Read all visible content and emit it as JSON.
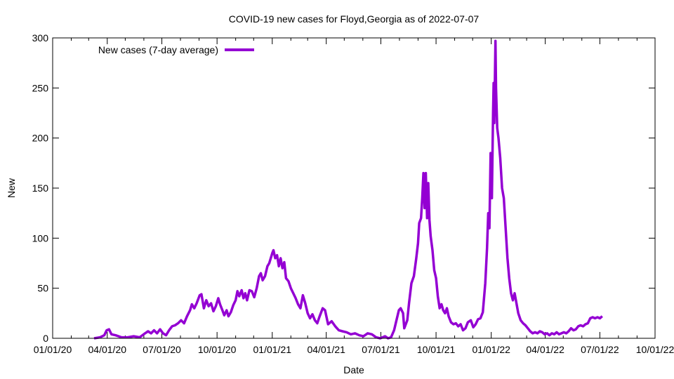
{
  "chart_data": {
    "type": "line",
    "title": "COVID-19 new cases for Floyd,Georgia as of 2022-07-07",
    "xlabel": "Date",
    "ylabel": "New",
    "x_ticks": [
      "01/01/20",
      "04/01/20",
      "07/01/20",
      "10/01/20",
      "01/01/21",
      "04/01/21",
      "07/01/21",
      "10/01/21",
      "01/01/22",
      "04/01/22",
      "07/01/22",
      "10/01/22"
    ],
    "x_tick_dates": [
      "2020-01-01",
      "2020-04-01",
      "2020-07-01",
      "2020-10-01",
      "2021-01-01",
      "2021-04-01",
      "2021-07-01",
      "2021-10-01",
      "2022-01-01",
      "2022-04-01",
      "2022-07-01",
      "2022-10-01"
    ],
    "xlim": [
      "2020-01-01",
      "2022-10-01"
    ],
    "ylim": [
      0,
      300
    ],
    "y_ticks": [
      0,
      50,
      100,
      150,
      200,
      250,
      300
    ],
    "grid": false,
    "legend_position": "top-left",
    "series": [
      {
        "name": "New cases (7-day average)",
        "color": "#9400D3",
        "points": [
          [
            "2020-03-10",
            0
          ],
          [
            "2020-03-20",
            1
          ],
          [
            "2020-03-27",
            3
          ],
          [
            "2020-03-31",
            8
          ],
          [
            "2020-04-04",
            9
          ],
          [
            "2020-04-08",
            4
          ],
          [
            "2020-04-15",
            3
          ],
          [
            "2020-04-25",
            1
          ],
          [
            "2020-05-05",
            1
          ],
          [
            "2020-05-15",
            2
          ],
          [
            "2020-05-25",
            1
          ],
          [
            "2020-06-03",
            5
          ],
          [
            "2020-06-08",
            7
          ],
          [
            "2020-06-13",
            5
          ],
          [
            "2020-06-18",
            8
          ],
          [
            "2020-06-23",
            5
          ],
          [
            "2020-06-28",
            9
          ],
          [
            "2020-07-03",
            5
          ],
          [
            "2020-07-08",
            3
          ],
          [
            "2020-07-13",
            8
          ],
          [
            "2020-07-18",
            12
          ],
          [
            "2020-07-23",
            13
          ],
          [
            "2020-07-28",
            15
          ],
          [
            "2020-08-02",
            18
          ],
          [
            "2020-08-07",
            15
          ],
          [
            "2020-08-12",
            22
          ],
          [
            "2020-08-17",
            28
          ],
          [
            "2020-08-20",
            34
          ],
          [
            "2020-08-24",
            30
          ],
          [
            "2020-08-28",
            35
          ],
          [
            "2020-09-02",
            43
          ],
          [
            "2020-09-05",
            44
          ],
          [
            "2020-09-09",
            30
          ],
          [
            "2020-09-13",
            38
          ],
          [
            "2020-09-17",
            32
          ],
          [
            "2020-09-21",
            35
          ],
          [
            "2020-09-25",
            27
          ],
          [
            "2020-09-29",
            32
          ],
          [
            "2020-10-03",
            40
          ],
          [
            "2020-10-06",
            34
          ],
          [
            "2020-10-10",
            28
          ],
          [
            "2020-10-13",
            23
          ],
          [
            "2020-10-17",
            28
          ],
          [
            "2020-10-20",
            22
          ],
          [
            "2020-10-24",
            26
          ],
          [
            "2020-10-28",
            33
          ],
          [
            "2020-11-01",
            38
          ],
          [
            "2020-11-04",
            47
          ],
          [
            "2020-11-07",
            42
          ],
          [
            "2020-11-11",
            48
          ],
          [
            "2020-11-14",
            40
          ],
          [
            "2020-11-17",
            45
          ],
          [
            "2020-11-20",
            38
          ],
          [
            "2020-11-24",
            48
          ],
          [
            "2020-11-28",
            47
          ],
          [
            "2020-12-02",
            41
          ],
          [
            "2020-12-06",
            50
          ],
          [
            "2020-12-10",
            62
          ],
          [
            "2020-12-13",
            65
          ],
          [
            "2020-12-16",
            58
          ],
          [
            "2020-12-20",
            62
          ],
          [
            "2020-12-24",
            72
          ],
          [
            "2020-12-27",
            75
          ],
          [
            "2021-01-01",
            85
          ],
          [
            "2021-01-03",
            88
          ],
          [
            "2021-01-06",
            80
          ],
          [
            "2021-01-09",
            83
          ],
          [
            "2021-01-12",
            72
          ],
          [
            "2021-01-15",
            80
          ],
          [
            "2021-01-18",
            70
          ],
          [
            "2021-01-21",
            76
          ],
          [
            "2021-01-24",
            60
          ],
          [
            "2021-01-28",
            57
          ],
          [
            "2021-02-01",
            50
          ],
          [
            "2021-02-05",
            45
          ],
          [
            "2021-02-09",
            40
          ],
          [
            "2021-02-13",
            34
          ],
          [
            "2021-02-17",
            30
          ],
          [
            "2021-02-21",
            43
          ],
          [
            "2021-02-25",
            35
          ],
          [
            "2021-03-01",
            25
          ],
          [
            "2021-03-05",
            20
          ],
          [
            "2021-03-09",
            24
          ],
          [
            "2021-03-13",
            18
          ],
          [
            "2021-03-17",
            15
          ],
          [
            "2021-03-21",
            22
          ],
          [
            "2021-03-26",
            30
          ],
          [
            "2021-03-30",
            28
          ],
          [
            "2021-04-04",
            14
          ],
          [
            "2021-04-10",
            17
          ],
          [
            "2021-04-16",
            12
          ],
          [
            "2021-04-22",
            8
          ],
          [
            "2021-04-28",
            7
          ],
          [
            "2021-05-05",
            6
          ],
          [
            "2021-05-12",
            4
          ],
          [
            "2021-05-19",
            5
          ],
          [
            "2021-05-26",
            3
          ],
          [
            "2021-06-02",
            2
          ],
          [
            "2021-06-09",
            5
          ],
          [
            "2021-06-16",
            4
          ],
          [
            "2021-06-23",
            1
          ],
          [
            "2021-06-30",
            0
          ],
          [
            "2021-07-08",
            2
          ],
          [
            "2021-07-13",
            0
          ],
          [
            "2021-07-18",
            1
          ],
          [
            "2021-07-23",
            8
          ],
          [
            "2021-07-27",
            18
          ],
          [
            "2021-07-31",
            28
          ],
          [
            "2021-08-03",
            30
          ],
          [
            "2021-08-07",
            25
          ],
          [
            "2021-08-09",
            10
          ],
          [
            "2021-08-14",
            18
          ],
          [
            "2021-08-17",
            35
          ],
          [
            "2021-08-21",
            55
          ],
          [
            "2021-08-25",
            62
          ],
          [
            "2021-08-29",
            80
          ],
          [
            "2021-09-01",
            95
          ],
          [
            "2021-09-03",
            115
          ],
          [
            "2021-09-06",
            120
          ],
          [
            "2021-09-08",
            140
          ],
          [
            "2021-09-10",
            165
          ],
          [
            "2021-09-12",
            130
          ],
          [
            "2021-09-14",
            165
          ],
          [
            "2021-09-16",
            120
          ],
          [
            "2021-09-18",
            155
          ],
          [
            "2021-09-20",
            118
          ],
          [
            "2021-09-22",
            102
          ],
          [
            "2021-09-25",
            88
          ],
          [
            "2021-09-28",
            68
          ],
          [
            "2021-10-01",
            60
          ],
          [
            "2021-10-04",
            42
          ],
          [
            "2021-10-07",
            30
          ],
          [
            "2021-10-10",
            34
          ],
          [
            "2021-10-13",
            28
          ],
          [
            "2021-10-16",
            25
          ],
          [
            "2021-10-19",
            30
          ],
          [
            "2021-10-22",
            22
          ],
          [
            "2021-10-26",
            16
          ],
          [
            "2021-10-30",
            14
          ],
          [
            "2021-11-03",
            15
          ],
          [
            "2021-11-07",
            12
          ],
          [
            "2021-11-11",
            14
          ],
          [
            "2021-11-15",
            8
          ],
          [
            "2021-11-19",
            10
          ],
          [
            "2021-11-23",
            16
          ],
          [
            "2021-11-28",
            18
          ],
          [
            "2021-12-02",
            11
          ],
          [
            "2021-12-06",
            14
          ],
          [
            "2021-12-10",
            19
          ],
          [
            "2021-12-14",
            20
          ],
          [
            "2021-12-18",
            26
          ],
          [
            "2021-12-22",
            55
          ],
          [
            "2021-12-25",
            90
          ],
          [
            "2021-12-27",
            125
          ],
          [
            "2021-12-29",
            110
          ],
          [
            "2021-12-31",
            185
          ],
          [
            "2022-01-02",
            140
          ],
          [
            "2022-01-04",
            225
          ],
          [
            "2022-01-05",
            255
          ],
          [
            "2022-01-06",
            215
          ],
          [
            "2022-01-08",
            297
          ],
          [
            "2022-01-09",
            250
          ],
          [
            "2022-01-11",
            210
          ],
          [
            "2022-01-13",
            200
          ],
          [
            "2022-01-16",
            180
          ],
          [
            "2022-01-19",
            150
          ],
          [
            "2022-01-22",
            140
          ],
          [
            "2022-01-25",
            110
          ],
          [
            "2022-01-28",
            80
          ],
          [
            "2022-01-31",
            60
          ],
          [
            "2022-02-03",
            45
          ],
          [
            "2022-02-06",
            38
          ],
          [
            "2022-02-09",
            45
          ],
          [
            "2022-02-12",
            35
          ],
          [
            "2022-02-15",
            25
          ],
          [
            "2022-02-19",
            18
          ],
          [
            "2022-02-23",
            15
          ],
          [
            "2022-02-27",
            13
          ],
          [
            "2022-03-03",
            10
          ],
          [
            "2022-03-07",
            7
          ],
          [
            "2022-03-11",
            5
          ],
          [
            "2022-03-15",
            6
          ],
          [
            "2022-03-19",
            5
          ],
          [
            "2022-03-23",
            7
          ],
          [
            "2022-03-27",
            6
          ],
          [
            "2022-03-31",
            4
          ],
          [
            "2022-04-04",
            5
          ],
          [
            "2022-04-08",
            3
          ],
          [
            "2022-04-12",
            5
          ],
          [
            "2022-04-16",
            4
          ],
          [
            "2022-04-20",
            6
          ],
          [
            "2022-04-24",
            4
          ],
          [
            "2022-04-28",
            5
          ],
          [
            "2022-05-02",
            6
          ],
          [
            "2022-05-06",
            5
          ],
          [
            "2022-05-10",
            7
          ],
          [
            "2022-05-14",
            10
          ],
          [
            "2022-05-18",
            8
          ],
          [
            "2022-05-22",
            9
          ],
          [
            "2022-05-26",
            12
          ],
          [
            "2022-05-30",
            13
          ],
          [
            "2022-06-03",
            12
          ],
          [
            "2022-06-07",
            14
          ],
          [
            "2022-06-11",
            15
          ],
          [
            "2022-06-15",
            20
          ],
          [
            "2022-06-19",
            21
          ],
          [
            "2022-06-23",
            20
          ],
          [
            "2022-06-27",
            21
          ],
          [
            "2022-07-01",
            20
          ],
          [
            "2022-07-05",
            22
          ]
        ]
      }
    ]
  }
}
